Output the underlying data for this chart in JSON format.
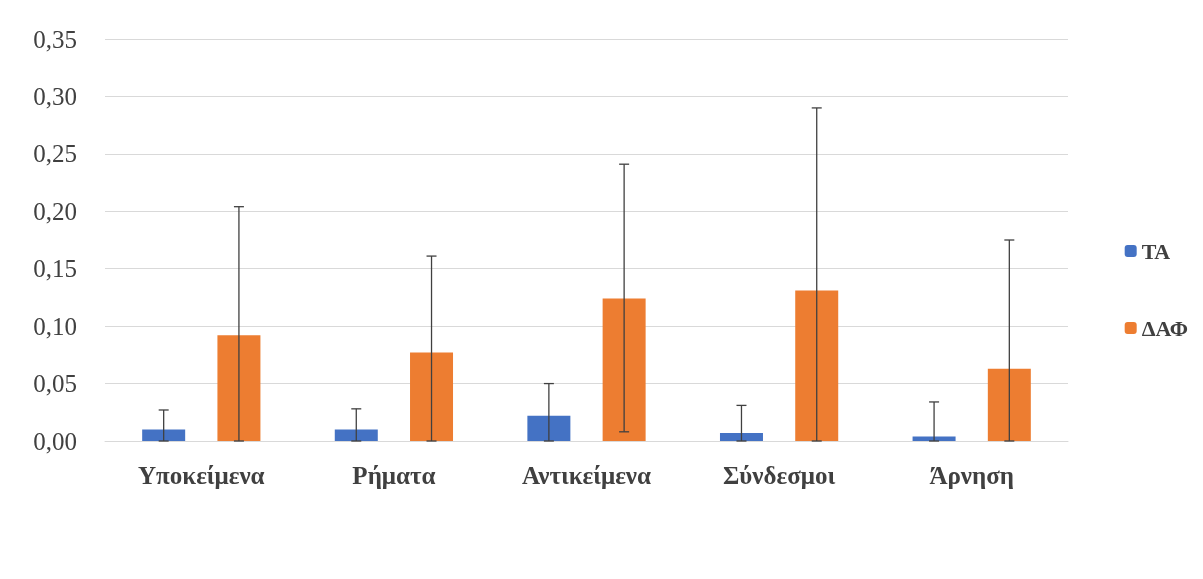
{
  "chart_data": {
    "type": "bar",
    "categories": [
      "Υποκείμενα",
      "Ρήματα",
      "Αντικείμενα",
      "Σύνδεσμοι",
      "Άρνηση"
    ],
    "series": [
      {
        "name": "ΤΑ",
        "color": "#4472c4",
        "values": [
          0.01,
          0.01,
          0.022,
          0.007,
          0.004
        ],
        "errors": [
          [
            0,
            0.027
          ],
          [
            0,
            0.028
          ],
          [
            0,
            0.05
          ],
          [
            0,
            0.031
          ],
          [
            0,
            0.034
          ]
        ]
      },
      {
        "name": "ΔΑΦ",
        "color": "#ed7d31",
        "values": [
          0.092,
          0.077,
          0.124,
          0.131,
          0.063
        ],
        "errors": [
          [
            0,
            0.204
          ],
          [
            0,
            0.161
          ],
          [
            0.008,
            0.241
          ],
          [
            0,
            0.29
          ],
          [
            0,
            0.175
          ]
        ]
      }
    ],
    "ylim": [
      0,
      0.35
    ],
    "yticks": [
      {
        "value": 0,
        "label": "0,00"
      },
      {
        "value": 0.05,
        "label": "0,05"
      },
      {
        "value": 0.1,
        "label": "0,10"
      },
      {
        "value": 0.15,
        "label": "0,15"
      },
      {
        "value": 0.2,
        "label": "0,20"
      },
      {
        "value": 0.25,
        "label": "0,25"
      },
      {
        "value": 0.3,
        "label": "0,30"
      },
      {
        "value": 0.35,
        "label": "0,35"
      }
    ],
    "grid": "y",
    "legend": "right"
  }
}
